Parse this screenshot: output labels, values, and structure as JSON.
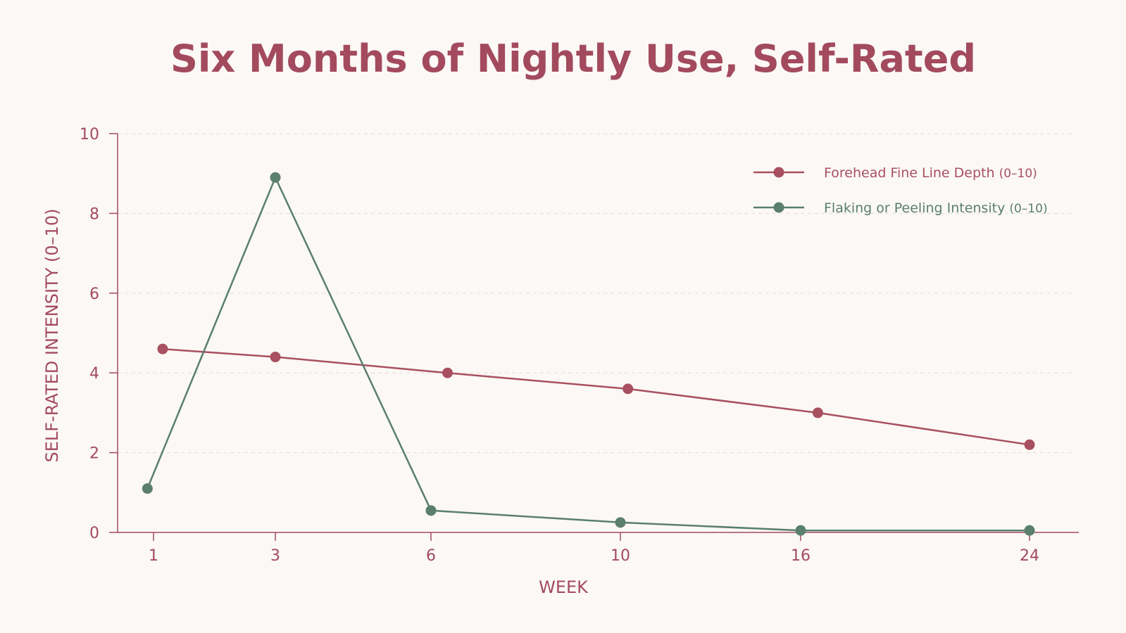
{
  "colors": {
    "background": "#fbf8f6",
    "title": "#a34a5e",
    "axis": "#a34a5e",
    "grid": "#e6dada",
    "series_rose": "#a8505f",
    "series_green": "#5a7f6c"
  },
  "chart_data": {
    "type": "line",
    "title": "Six Months of Nightly Use, Self-Rated",
    "xlabel": "WEEK",
    "ylabel": "SELF-RATED INTENSITY (0–10)",
    "x_ticks": [
      "1",
      "3",
      "6",
      "10",
      "16",
      "24"
    ],
    "y_ticks": [
      "0",
      "2",
      "4",
      "6",
      "8",
      "10"
    ],
    "ylim": [
      0,
      10
    ],
    "grid": "horizontal dashed",
    "legend_position": "top-right",
    "series": [
      {
        "name": "Forehead Fine Line Depth",
        "name_suffix": "(0–10)",
        "color": "#a8505f",
        "x": [
          1.15,
          3,
          6.35,
          10.25,
          16.6,
          24
        ],
        "y": [
          4.6,
          4.4,
          4.0,
          3.6,
          3.0,
          2.2
        ]
      },
      {
        "name": "Flaking or Peeling Intensity",
        "name_suffix": "(0–10)",
        "color": "#5a7f6c",
        "x": [
          0.9,
          3,
          6,
          10,
          16,
          24
        ],
        "y": [
          1.1,
          8.9,
          0.55,
          0.25,
          0.05,
          0.05
        ]
      }
    ]
  }
}
